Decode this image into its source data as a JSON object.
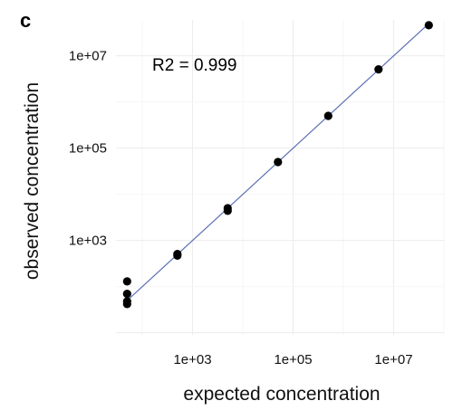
{
  "panel_label": "c",
  "chart_data": {
    "type": "scatter",
    "title": "",
    "xlabel": "expected concentration",
    "ylabel": "observed concentration",
    "x_scale": "log10",
    "y_scale": "log10",
    "xlim": [
      30,
      100000000
    ],
    "ylim": [
      9,
      60000000
    ],
    "x_ticks": [
      {
        "value": 1000,
        "label": "1e+03"
      },
      {
        "value": 100000,
        "label": "1e+05"
      },
      {
        "value": 10000000,
        "label": "1e+07"
      }
    ],
    "y_ticks": [
      {
        "value": 1000,
        "label": "1e+03"
      },
      {
        "value": 100000,
        "label": "1e+05"
      },
      {
        "value": 10000000,
        "label": "1e+07"
      }
    ],
    "grid": true,
    "annotation": "R2 = 0.999",
    "points": [
      {
        "x": 50,
        "y": 130
      },
      {
        "x": 50,
        "y": 70
      },
      {
        "x": 50,
        "y": 48
      },
      {
        "x": 50,
        "y": 42
      },
      {
        "x": 500,
        "y": 510
      },
      {
        "x": 500,
        "y": 470
      },
      {
        "x": 5000,
        "y": 5000
      },
      {
        "x": 5000,
        "y": 4400
      },
      {
        "x": 50000,
        "y": 50000
      },
      {
        "x": 500000,
        "y": 500000
      },
      {
        "x": 5000000,
        "y": 5100000
      },
      {
        "x": 50000000,
        "y": 46000000
      }
    ],
    "fit_line": {
      "x": [
        50,
        50000000
      ],
      "y": [
        50,
        50000000
      ],
      "color": "#5b6fb5"
    },
    "point_color": "#000000"
  }
}
